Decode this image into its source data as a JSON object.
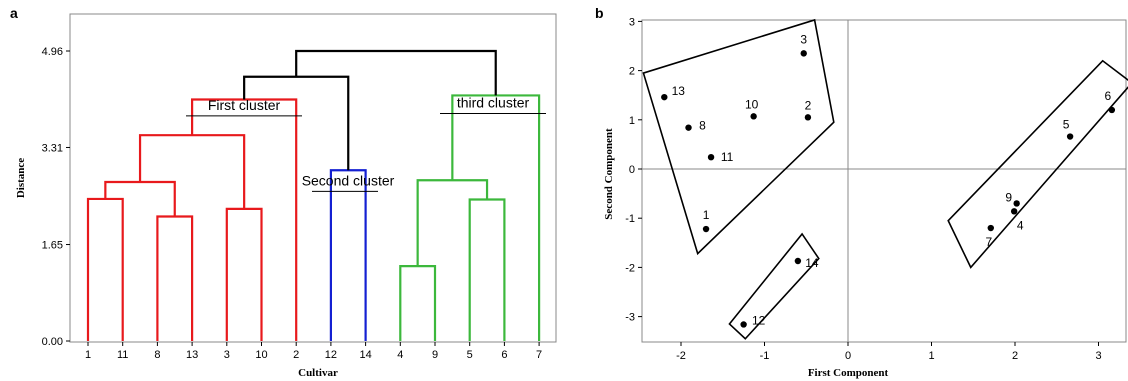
{
  "chart_data": [
    {
      "type": "dendrogram",
      "panel_label": "a",
      "xlabel": "Cultivar",
      "ylabel": "Distance",
      "ylim": [
        0,
        4.96
      ],
      "yticks": [
        0.0,
        1.65,
        3.31,
        4.96
      ],
      "yticks_labels": [
        "0.00",
        "1.65",
        "3.31",
        "4.96"
      ],
      "leaves": [
        "1",
        "11",
        "8",
        "13",
        "3",
        "10",
        "2",
        "12",
        "14",
        "4",
        "9",
        "5",
        "6",
        "7"
      ],
      "colors": {
        "first": "#e8191c",
        "second": "#1420d2",
        "third": "#3cb83c",
        "top": "#000000"
      },
      "merges": [
        {
          "left": "1",
          "right": "11",
          "height": 2.43,
          "color": "first"
        },
        {
          "left": "8",
          "right": "13",
          "height": 2.13,
          "color": "first"
        },
        {
          "left": "3",
          "right": "10",
          "height": 2.26,
          "color": "first"
        },
        {
          "left": "1-11",
          "right": "8-13",
          "height": 2.72,
          "color": "first"
        },
        {
          "left": "1-11-8-13",
          "right": "3-10",
          "height": 3.52,
          "color": "first"
        },
        {
          "left": "1-11-8-13-3-10",
          "right": "2",
          "height": 4.13,
          "color": "first"
        },
        {
          "left": "12",
          "right": "14",
          "height": 2.92,
          "color": "second"
        },
        {
          "left": "4",
          "right": "9",
          "height": 1.28,
          "color": "third"
        },
        {
          "left": "5",
          "right": "6",
          "height": 2.42,
          "color": "third"
        },
        {
          "left": "4-9",
          "right": "5-6",
          "height": 2.75,
          "color": "third"
        },
        {
          "left": "4-9-5-6",
          "right": "7",
          "height": 4.2,
          "color": "third"
        },
        {
          "left": "first",
          "right": "second",
          "height": 4.52,
          "color": "top"
        },
        {
          "left": "first-second",
          "right": "third",
          "height": 4.96,
          "color": "top"
        }
      ],
      "annotations": [
        {
          "text": "First cluster",
          "cut_height": 3.85
        },
        {
          "text": "Second cluster",
          "cut_height": 2.56
        },
        {
          "text": "third cluster",
          "cut_height": 3.89
        }
      ]
    },
    {
      "type": "scatter",
      "panel_label": "b",
      "xlabel": "First Component",
      "ylabel": "Second Component",
      "xlim": [
        -2.5,
        3.3
      ],
      "ylim": [
        -3.5,
        3.1
      ],
      "xticks": [
        -2,
        -1,
        0,
        1,
        2,
        3
      ],
      "yticks": [
        -3,
        -2,
        -1,
        0,
        1,
        2,
        3
      ],
      "points": [
        {
          "label": "1",
          "x": -1.7,
          "y": -1.22
        },
        {
          "label": "2",
          "x": -0.48,
          "y": 1.05
        },
        {
          "label": "3",
          "x": -0.53,
          "y": 2.35
        },
        {
          "label": "4",
          "x": 1.99,
          "y": -0.86
        },
        {
          "label": "5",
          "x": 2.66,
          "y": 0.66
        },
        {
          "label": "6",
          "x": 3.16,
          "y": 1.2
        },
        {
          "label": "7",
          "x": 1.71,
          "y": -1.2
        },
        {
          "label": "8",
          "x": -1.91,
          "y": 0.84
        },
        {
          "label": "9",
          "x": 2.02,
          "y": -0.7
        },
        {
          "label": "10",
          "x": -1.13,
          "y": 1.07
        },
        {
          "label": "11",
          "x": -1.64,
          "y": 0.24
        },
        {
          "label": "12",
          "x": -1.25,
          "y": -3.16
        },
        {
          "label": "13",
          "x": -2.2,
          "y": 1.46
        },
        {
          "label": "14",
          "x": -0.6,
          "y": -1.87
        }
      ],
      "groups": [
        {
          "members": [
            "1",
            "2",
            "3",
            "8",
            "10",
            "11",
            "13"
          ],
          "polygon": [
            [
              -2.45,
              1.95
            ],
            [
              -0.4,
              3.03
            ],
            [
              -0.17,
              0.95
            ],
            [
              -1.8,
              -1.72
            ]
          ]
        },
        {
          "members": [
            "4",
            "5",
            "6",
            "7",
            "9"
          ],
          "polygon": [
            [
              1.2,
              -1.05
            ],
            [
              3.05,
              2.2
            ],
            [
              3.4,
              1.75
            ],
            [
              1.47,
              -2.0
            ]
          ]
        },
        {
          "members": [
            "12",
            "14"
          ],
          "polygon": [
            [
              -1.42,
              -3.15
            ],
            [
              -0.55,
              -1.32
            ],
            [
              -0.35,
              -1.82
            ],
            [
              -1.23,
              -3.45
            ]
          ]
        }
      ]
    }
  ]
}
